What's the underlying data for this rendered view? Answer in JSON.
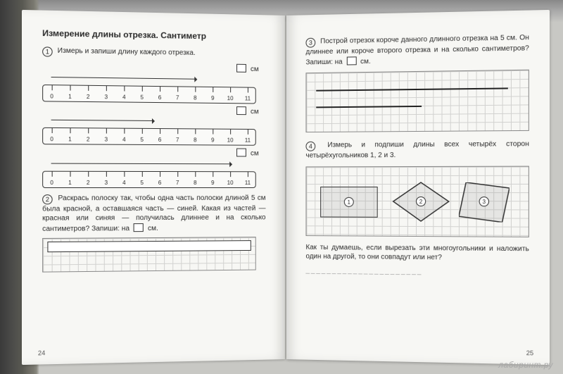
{
  "leftPage": {
    "title": "Измерение длины отрезка. Сантиметр",
    "task1": {
      "num": "1",
      "text": "Измерь и запиши длину каждого отрезка.",
      "cm": "см"
    },
    "rulers": {
      "ticks": [
        0,
        1,
        2,
        3,
        4,
        5,
        6,
        7,
        8,
        9,
        10,
        11
      ],
      "arrows_cm_w": [
        "200px",
        "140px",
        "250px"
      ]
    },
    "task2": {
      "num": "2",
      "text": "Раскрась полоску так, чтобы одна часть полоски длиной 5 см была красной, а оставшаяся часть — синей. Какая из частей — красная или синяя — получилась длиннее и на сколько сантиметров? Запиши: на ",
      "tail": " см."
    },
    "pageNum": "24"
  },
  "rightPage": {
    "task3": {
      "num": "3",
      "text": "Построй отрезок короче данного длинного отрезка на 5 см. Он длиннее или короче второго отрезка и на сколько сантиметров? Запиши: на ",
      "tail": " см."
    },
    "segments_w": [
      "270px",
      "150px"
    ],
    "task4": {
      "num": "4",
      "text": "Измерь и подпиши длины всех четырёх сторон четырёхугольников 1, 2 и 3."
    },
    "shapeLabels": [
      "1",
      "2",
      "3"
    ],
    "question": "Как ты думаешь, если вырезать эти многоугольники и наложить один на другой, то они совпадут или нет?",
    "blankLine": "______________________",
    "pageNum": "25"
  },
  "watermark": "лабиринт.ру"
}
